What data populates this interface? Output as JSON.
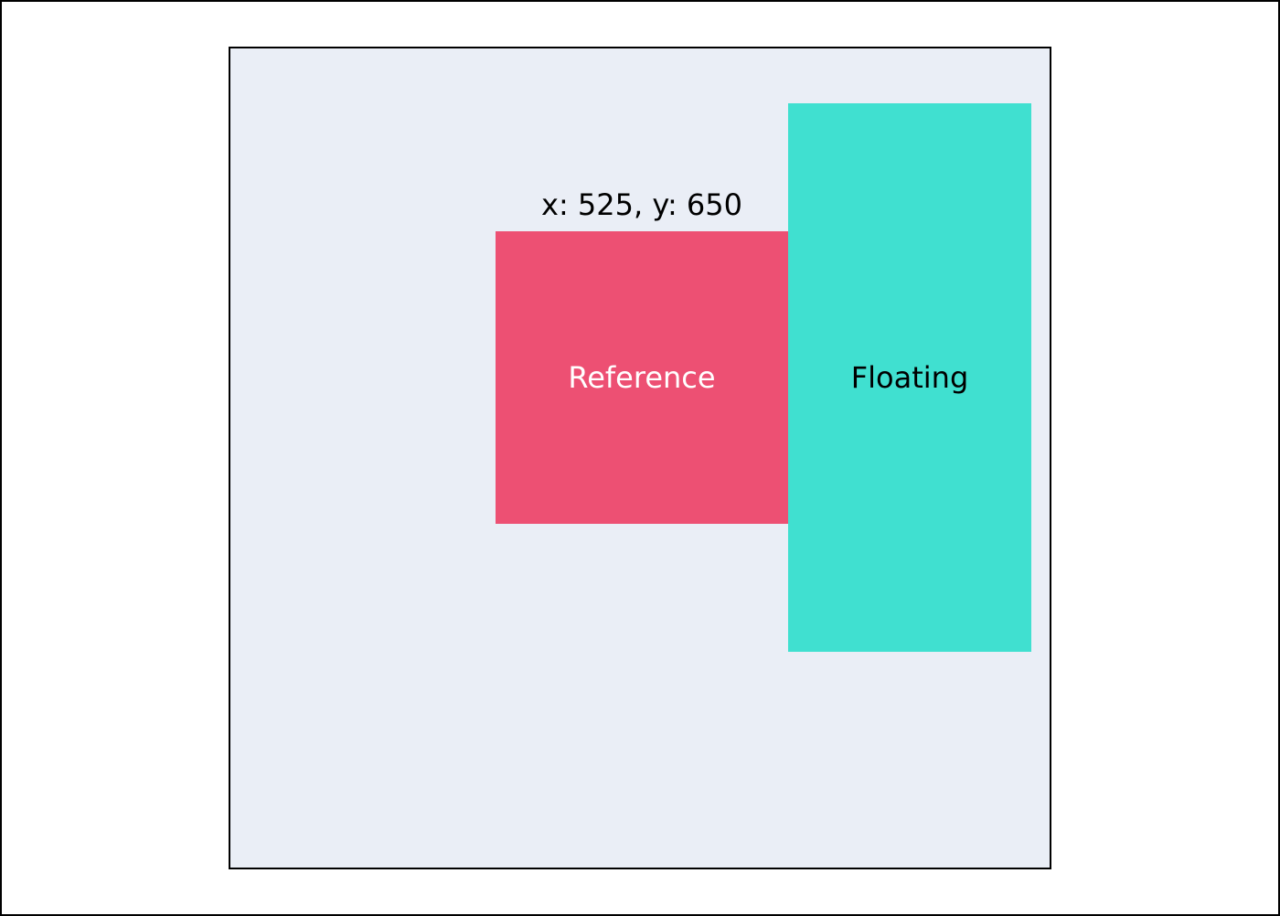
{
  "coordinates": {
    "text": "x: 525, y: 650"
  },
  "reference": {
    "label": "Reference",
    "color": "#ed5073",
    "text_color": "#ffffff"
  },
  "floating": {
    "label": "Floating",
    "color": "#40e0d0",
    "text_color": "#000000"
  },
  "container": {
    "color": "#eaeef6"
  }
}
